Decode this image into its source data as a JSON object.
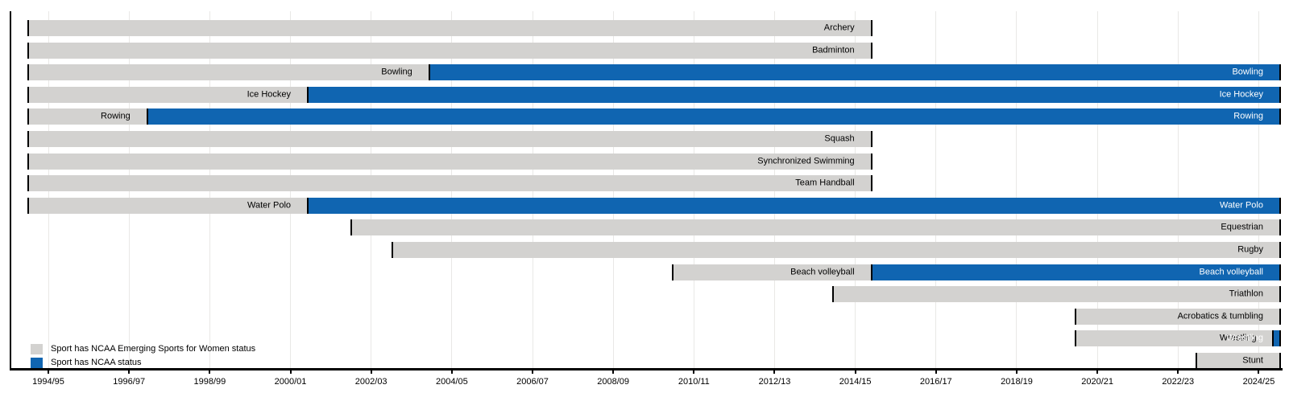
{
  "chart_data": {
    "type": "bar",
    "subtype": "gantt-timeline",
    "title": "",
    "grid": true,
    "legend_position": "bottom-left",
    "colors": {
      "emerging": "#d3d2d0",
      "ncaa": "#1065b1",
      "cap": "#000000",
      "gridline": "#e9e8e6",
      "axis": "#000000"
    },
    "x_axis": {
      "range_years": [
        1994.48,
        2025.55
      ],
      "ticks": [
        {
          "year": 1995,
          "label": "1994/95"
        },
        {
          "year": 1997,
          "label": "1996/97"
        },
        {
          "year": 1999,
          "label": "1998/99"
        },
        {
          "year": 2001,
          "label": "2000/01"
        },
        {
          "year": 2003,
          "label": "2002/03"
        },
        {
          "year": 2005,
          "label": "2004/05"
        },
        {
          "year": 2007,
          "label": "2006/07"
        },
        {
          "year": 2009,
          "label": "2008/09"
        },
        {
          "year": 2011,
          "label": "2010/11"
        },
        {
          "year": 2013,
          "label": "2012/13"
        },
        {
          "year": 2015,
          "label": "2014/15"
        },
        {
          "year": 2017,
          "label": "2016/17"
        },
        {
          "year": 2019,
          "label": "2018/19"
        },
        {
          "year": 2021,
          "label": "2020/21"
        },
        {
          "year": 2023,
          "label": "2022/23"
        },
        {
          "year": 2025,
          "label": "2024/25"
        }
      ]
    },
    "legend": [
      {
        "status": "emerging",
        "label": "Sport has NCAA Emerging Sports for Women status"
      },
      {
        "status": "ncaa",
        "label": "Sport has NCAA status"
      }
    ],
    "rows": [
      {
        "name": "Archery",
        "segments": [
          {
            "status": "emerging",
            "start_year": 1994.48,
            "end_year": 2015.42,
            "bar_label": "Archery"
          }
        ]
      },
      {
        "name": "Badminton",
        "segments": [
          {
            "status": "emerging",
            "start_year": 1994.48,
            "end_year": 2015.42,
            "bar_label": "Badminton"
          }
        ]
      },
      {
        "name": "Bowling",
        "segments": [
          {
            "status": "emerging",
            "start_year": 1994.48,
            "end_year": 2004.46,
            "bar_label": "Bowling"
          },
          {
            "status": "ncaa",
            "start_year": 2004.46,
            "end_year": 2025.55,
            "bar_label": "Bowling"
          }
        ]
      },
      {
        "name": "Ice Hockey",
        "segments": [
          {
            "status": "emerging",
            "start_year": 1994.48,
            "end_year": 2001.45,
            "bar_label": "Ice Hockey"
          },
          {
            "status": "ncaa",
            "start_year": 2001.45,
            "end_year": 2025.55,
            "bar_label": "Ice Hockey"
          }
        ]
      },
      {
        "name": "Rowing",
        "segments": [
          {
            "status": "emerging",
            "start_year": 1994.48,
            "end_year": 1997.47,
            "bar_label": "Rowing"
          },
          {
            "status": "ncaa",
            "start_year": 1997.47,
            "end_year": 2025.55,
            "bar_label": "Rowing"
          }
        ]
      },
      {
        "name": "Squash",
        "segments": [
          {
            "status": "emerging",
            "start_year": 1994.48,
            "end_year": 2015.42,
            "bar_label": "Squash"
          }
        ]
      },
      {
        "name": "Synchronized Swimming",
        "segments": [
          {
            "status": "emerging",
            "start_year": 1994.48,
            "end_year": 2015.42,
            "bar_label": "Synchronized Swimming"
          }
        ]
      },
      {
        "name": "Team Handball",
        "segments": [
          {
            "status": "emerging",
            "start_year": 1994.48,
            "end_year": 2015.42,
            "bar_label": "Team Handball"
          }
        ]
      },
      {
        "name": "Water Polo",
        "segments": [
          {
            "status": "emerging",
            "start_year": 1994.48,
            "end_year": 2001.45,
            "bar_label": "Water Polo"
          },
          {
            "status": "ncaa",
            "start_year": 2001.45,
            "end_year": 2025.55,
            "bar_label": "Water Polo"
          }
        ]
      },
      {
        "name": "Equestrian",
        "segments": [
          {
            "status": "emerging",
            "start_year": 2002.49,
            "end_year": 2025.55,
            "bar_label": "Equestrian"
          }
        ]
      },
      {
        "name": "Rugby",
        "segments": [
          {
            "status": "emerging",
            "start_year": 2003.5,
            "end_year": 2025.55,
            "bar_label": "Rugby"
          }
        ]
      },
      {
        "name": "Beach volleyball",
        "segments": [
          {
            "status": "emerging",
            "start_year": 2010.45,
            "end_year": 2015.42,
            "bar_label": "Beach volleyball"
          },
          {
            "status": "ncaa",
            "start_year": 2015.42,
            "end_year": 2025.55,
            "bar_label": "Beach volleyball"
          }
        ]
      },
      {
        "name": "Triathlon",
        "segments": [
          {
            "status": "emerging",
            "start_year": 2014.42,
            "end_year": 2025.55,
            "bar_label": "Triathlon"
          }
        ]
      },
      {
        "name": "Acrobatics & tumbling",
        "segments": [
          {
            "status": "emerging",
            "start_year": 2020.43,
            "end_year": 2025.55,
            "bar_label": "Acrobatics & tumbling"
          }
        ]
      },
      {
        "name": "Wrestling",
        "segments": [
          {
            "status": "emerging",
            "start_year": 2020.43,
            "end_year": 2025.38,
            "bar_label": "Wrestling"
          },
          {
            "status": "ncaa",
            "start_year": 2025.38,
            "end_year": 2025.55,
            "bar_label": "Wrestling"
          }
        ]
      },
      {
        "name": "Stunt",
        "segments": [
          {
            "status": "emerging",
            "start_year": 2023.43,
            "end_year": 2025.55,
            "bar_label": "Stunt"
          }
        ]
      }
    ]
  }
}
